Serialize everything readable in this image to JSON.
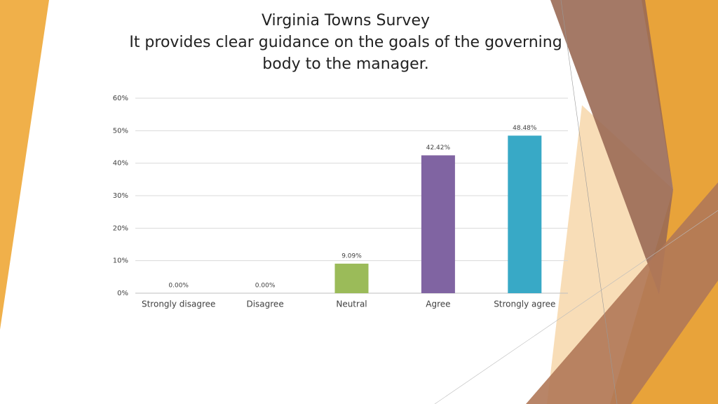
{
  "chart_data": {
    "type": "bar",
    "title": "Virginia Towns Survey",
    "subtitle": "It provides clear guidance on the goals of the governing body to the manager.",
    "categories": [
      "Strongly disagree",
      "Disagree",
      "Neutral",
      "Agree",
      "Strongly agree"
    ],
    "values": [
      0,
      0,
      9.09,
      42.42,
      48.48
    ],
    "value_labels": [
      "0.00%",
      "0.00%",
      "9.09%",
      "42.42%",
      "48.48%"
    ],
    "colors": [
      null,
      null,
      "#9bbb59",
      "#8064a2",
      "#38a9c6"
    ],
    "ylim": [
      0,
      60
    ],
    "yticks": [
      {
        "value": 0,
        "label": "0%"
      },
      {
        "value": 10,
        "label": "10%"
      },
      {
        "value": 20,
        "label": "20%"
      },
      {
        "value": 30,
        "label": "30%"
      },
      {
        "value": 40,
        "label": "40%"
      },
      {
        "value": 50,
        "label": "50%"
      },
      {
        "value": 60,
        "label": "60%"
      }
    ],
    "grid": true
  }
}
